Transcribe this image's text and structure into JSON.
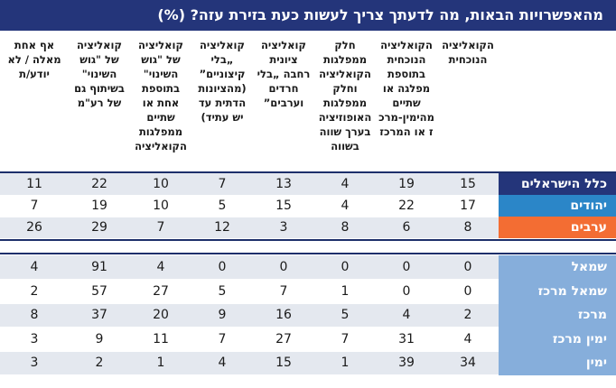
{
  "title": "מהאפשרויות הבאות, מה לדעתך צריך לעשות כעת בזירת עזה? (%)",
  "columns": [
    {
      "label": "הקואליציה הנוכחית"
    },
    {
      "label": "הקואליציה הנוכחית בתוספת מפלגה או שתיים מהימין-מרכז או המרכז"
    },
    {
      "label": "חלק ממפלגות הקואליציה וחלק ממפלגות האופוזיציה בערך שווה בשווה"
    },
    {
      "label": "קואליציה ציונית רחבה „בלי חרדים וערבים”"
    },
    {
      "label": "קואליציה „בלי קיצוניים” (מהציונות הדתית עד יש עתיד)"
    },
    {
      "label": "קואליציה של \"גוש השינוי\" בתוספת אחת או שתיים ממפלגות הקואליציה"
    },
    {
      "label": "קואליציה של \"גוש השינוי\" בשיתוף גם של רע\"מ"
    },
    {
      "label": "אף אחת מאלה / לא יודע/ת"
    }
  ],
  "group1": [
    {
      "label": "כלל הישראלים",
      "color": "#24357a",
      "values": [
        "15",
        "19",
        "4",
        "13",
        "7",
        "10",
        "22",
        "11"
      ]
    },
    {
      "label": "יהודים",
      "color": "#2b86c8",
      "values": [
        "17",
        "22",
        "4",
        "15",
        "5",
        "10",
        "19",
        "7"
      ]
    },
    {
      "label": "ערבים",
      "color": "#f36d33",
      "values": [
        "8",
        "6",
        "8",
        "3",
        "12",
        "7",
        "29",
        "26"
      ]
    }
  ],
  "group2": [
    {
      "label": "שמאל",
      "color": "#86aedb",
      "values": [
        "0",
        "0",
        "0",
        "0",
        "0",
        "4",
        "91",
        "4"
      ]
    },
    {
      "label": "שמאל מרכז",
      "color": "#86aedb",
      "values": [
        "0",
        "0",
        "1",
        "7",
        "5",
        "27",
        "57",
        "2"
      ]
    },
    {
      "label": "מרכז",
      "color": "#86aedb",
      "values": [
        "2",
        "4",
        "5",
        "16",
        "9",
        "20",
        "37",
        "8"
      ]
    },
    {
      "label": "ימין מרכז",
      "color": "#86aedb",
      "values": [
        "4",
        "31",
        "7",
        "27",
        "7",
        "11",
        "9",
        "3"
      ]
    },
    {
      "label": "ימין",
      "color": "#86aedb",
      "values": [
        "34",
        "39",
        "1",
        "15",
        "4",
        "1",
        "2",
        "3"
      ]
    }
  ]
}
